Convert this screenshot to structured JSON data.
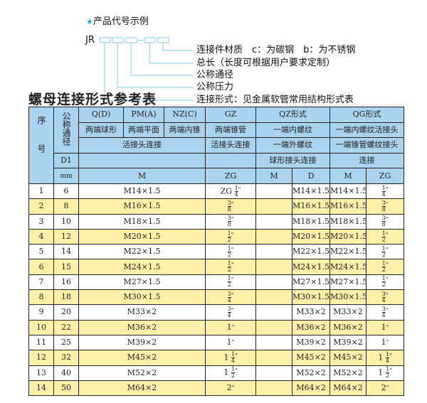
{
  "code_example": {
    "star_icon": "star-icon",
    "heading": "产品代号示例",
    "prefix": "JR",
    "accent": "#2aa6d8",
    "labels": [
      "连接件材质　c：为碳钢　b：为不锈钢",
      "总长（长度可根据用户要求定制）",
      "公称通径",
      "公称压力",
      "连接形式：见金属软管常用结构形式表"
    ]
  },
  "table_title": "螺母连接形式参考表",
  "header": {
    "seq": "序号",
    "nominal": "公称通径",
    "d1": "D1",
    "mm": "mm",
    "types": [
      "Q(D)",
      "PM(A)",
      "NZ(C)",
      "GZ",
      "QZ形式",
      "QG形式"
    ],
    "row2": [
      "两端球形",
      "两端平面",
      "两端内锥",
      "两端锥管",
      "一端内螺纹",
      "一端内螺纹活接头"
    ],
    "row3": [
      "活接头连接",
      "活接头连接",
      "一端外螺纹",
      "一端锥管螺纹接头"
    ],
    "row4": [
      "",
      "",
      "球形接头连接",
      "连接"
    ],
    "row5": [
      "M",
      "ZG",
      "M",
      "D",
      "M",
      "ZG"
    ]
  },
  "rows": [
    {
      "no": "1",
      "dn": "6",
      "m": "M14×1.5",
      "zg": {
        "pre": "ZG",
        "num": "1",
        "den": "4"
      },
      "qz_m": "",
      "qz_d": "M14×1.5",
      "qg_m": "M14×1.5",
      "qg_zg": {
        "pre": "",
        "num": "1",
        "den": "4"
      }
    },
    {
      "no": "2",
      "dn": "8",
      "m": "M16×1.5",
      "zg": {
        "pre": "",
        "num": "3",
        "den": "8"
      },
      "qz_m": "",
      "qz_d": "M16×1.5",
      "qg_m": "M16×1.5",
      "qg_zg": {
        "pre": "",
        "num": "3",
        "den": "8"
      }
    },
    {
      "no": "3",
      "dn": "10",
      "m": "M18×1.5",
      "zg": {
        "pre": "",
        "num": "3",
        "den": "8"
      },
      "qz_m": "",
      "qz_d": "M18×1.5",
      "qg_m": "M18×1.5",
      "qg_zg": {
        "pre": "",
        "num": "3",
        "den": "8"
      }
    },
    {
      "no": "4",
      "dn": "12",
      "m": "M20×1.5",
      "zg": {
        "pre": "",
        "num": "1",
        "den": "2"
      },
      "qz_m": "",
      "qz_d": "M20×1.5",
      "qg_m": "M20×1.5",
      "qg_zg": {
        "pre": "",
        "num": "1",
        "den": "2"
      }
    },
    {
      "no": "5",
      "dn": "14",
      "m": "M22×1.5",
      "zg": {
        "pre": "",
        "num": "1",
        "den": "2"
      },
      "qz_m": "",
      "qz_d": "M22×1.5",
      "qg_m": "M22×1.5",
      "qg_zg": {
        "pre": "",
        "num": "1",
        "den": "2"
      }
    },
    {
      "no": "6",
      "dn": "15",
      "m": "M24×1.5",
      "zg": {
        "pre": "",
        "num": "1",
        "den": "2"
      },
      "qz_m": "",
      "qz_d": "M24×1.5",
      "qg_m": "M24×1.5",
      "qg_zg": {
        "pre": "",
        "num": "1",
        "den": "2"
      }
    },
    {
      "no": "7",
      "dn": "16",
      "m": "M27×1.5",
      "zg": {
        "pre": "",
        "num": "1",
        "den": "2"
      },
      "qz_m": "",
      "qz_d": "M27×1.5",
      "qg_m": "M27×1.5",
      "qg_zg": {
        "pre": "",
        "num": "1",
        "den": "2"
      }
    },
    {
      "no": "8",
      "dn": "18",
      "m": "M30×1.5",
      "zg": {
        "pre": "",
        "num": "3",
        "den": "4"
      },
      "qz_m": "",
      "qz_d": "M30×1.5",
      "qg_m": "M30×1.5",
      "qg_zg": {
        "pre": "",
        "num": "3",
        "den": "4"
      }
    },
    {
      "no": "9",
      "dn": "20",
      "m": "M33×2",
      "zg": {
        "pre": "",
        "num": "3",
        "den": "4"
      },
      "qz_m": "",
      "qz_d": "M33×2",
      "qg_m": "M33×2",
      "qg_zg": {
        "pre": "",
        "num": "3",
        "den": "4"
      }
    },
    {
      "no": "10",
      "dn": "22",
      "m": "M36×2",
      "zg": {
        "pre": "1",
        "num": "",
        "den": ""
      },
      "qz_m": "",
      "qz_d": "M36×2",
      "qg_m": "M36×2",
      "qg_zg": {
        "pre": "1",
        "num": "",
        "den": ""
      }
    },
    {
      "no": "11",
      "dn": "25",
      "m": "M39×2",
      "zg": {
        "pre": "1",
        "num": "",
        "den": ""
      },
      "qz_m": "",
      "qz_d": "M39×2",
      "qg_m": "M39×2",
      "qg_zg": {
        "pre": "1",
        "num": "",
        "den": ""
      }
    },
    {
      "no": "12",
      "dn": "32",
      "m": "M45×2",
      "zg": {
        "pre": "1",
        "num": "1",
        "den": "4"
      },
      "qz_m": "",
      "qz_d": "M45×2",
      "qg_m": "M45×2",
      "qg_zg": {
        "pre": "1",
        "num": "1",
        "den": "4"
      }
    },
    {
      "no": "13",
      "dn": "40",
      "m": "M52×2",
      "zg": {
        "pre": "1",
        "num": "1",
        "den": "2"
      },
      "qz_m": "",
      "qz_d": "M52×2",
      "qg_m": "M52×2",
      "qg_zg": {
        "pre": "1",
        "num": "1",
        "den": "2"
      }
    },
    {
      "no": "14",
      "dn": "50",
      "m": "M64×2",
      "zg": {
        "pre": "2",
        "num": "",
        "den": ""
      },
      "qz_m": "",
      "qz_d": "M64×2",
      "qg_m": "M64×2",
      "qg_zg": {
        "pre": "2",
        "num": "",
        "den": ""
      }
    }
  ],
  "inch_mark": "\""
}
